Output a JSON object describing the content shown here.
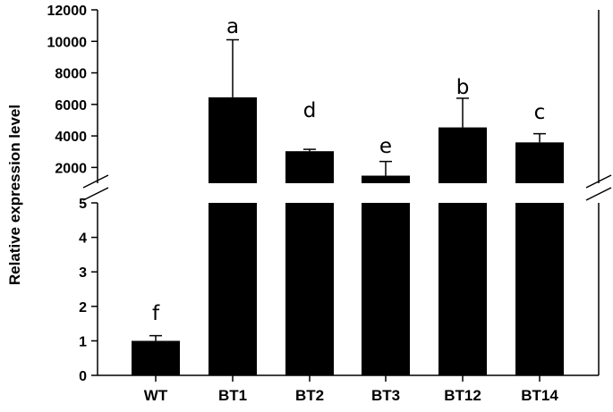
{
  "chart_data": {
    "type": "bar",
    "title": "",
    "xlabel": "",
    "ylabel": "Relative expression level",
    "broken_axis": true,
    "axis_segments": [
      {
        "name": "lower",
        "ylim": [
          0,
          5
        ],
        "ticks": [
          0,
          1,
          2,
          3,
          4,
          5
        ],
        "tick_labels": [
          "0",
          "1",
          "2",
          "3",
          "4",
          "5"
        ]
      },
      {
        "name": "upper",
        "ylim": [
          1000,
          12000
        ],
        "ticks": [
          2000,
          4000,
          6000,
          8000,
          10000,
          12000
        ],
        "tick_labels": [
          "2000",
          "4000",
          "6000",
          "8000",
          "10000",
          "12000"
        ]
      }
    ],
    "categories": [
      "WT",
      "BT1",
      "BT2",
      "BT3",
      "BT12",
      "BT14"
    ],
    "values": [
      1.0,
      6450,
      3030,
      1480,
      4540,
      3590
    ],
    "errors": [
      0.15,
      3650,
      120,
      900,
      1850,
      550
    ],
    "significance_letters": [
      "f",
      "a",
      "d",
      "e",
      "b",
      "c"
    ],
    "bar_color": "#000000",
    "grid": false,
    "legend": "none"
  }
}
